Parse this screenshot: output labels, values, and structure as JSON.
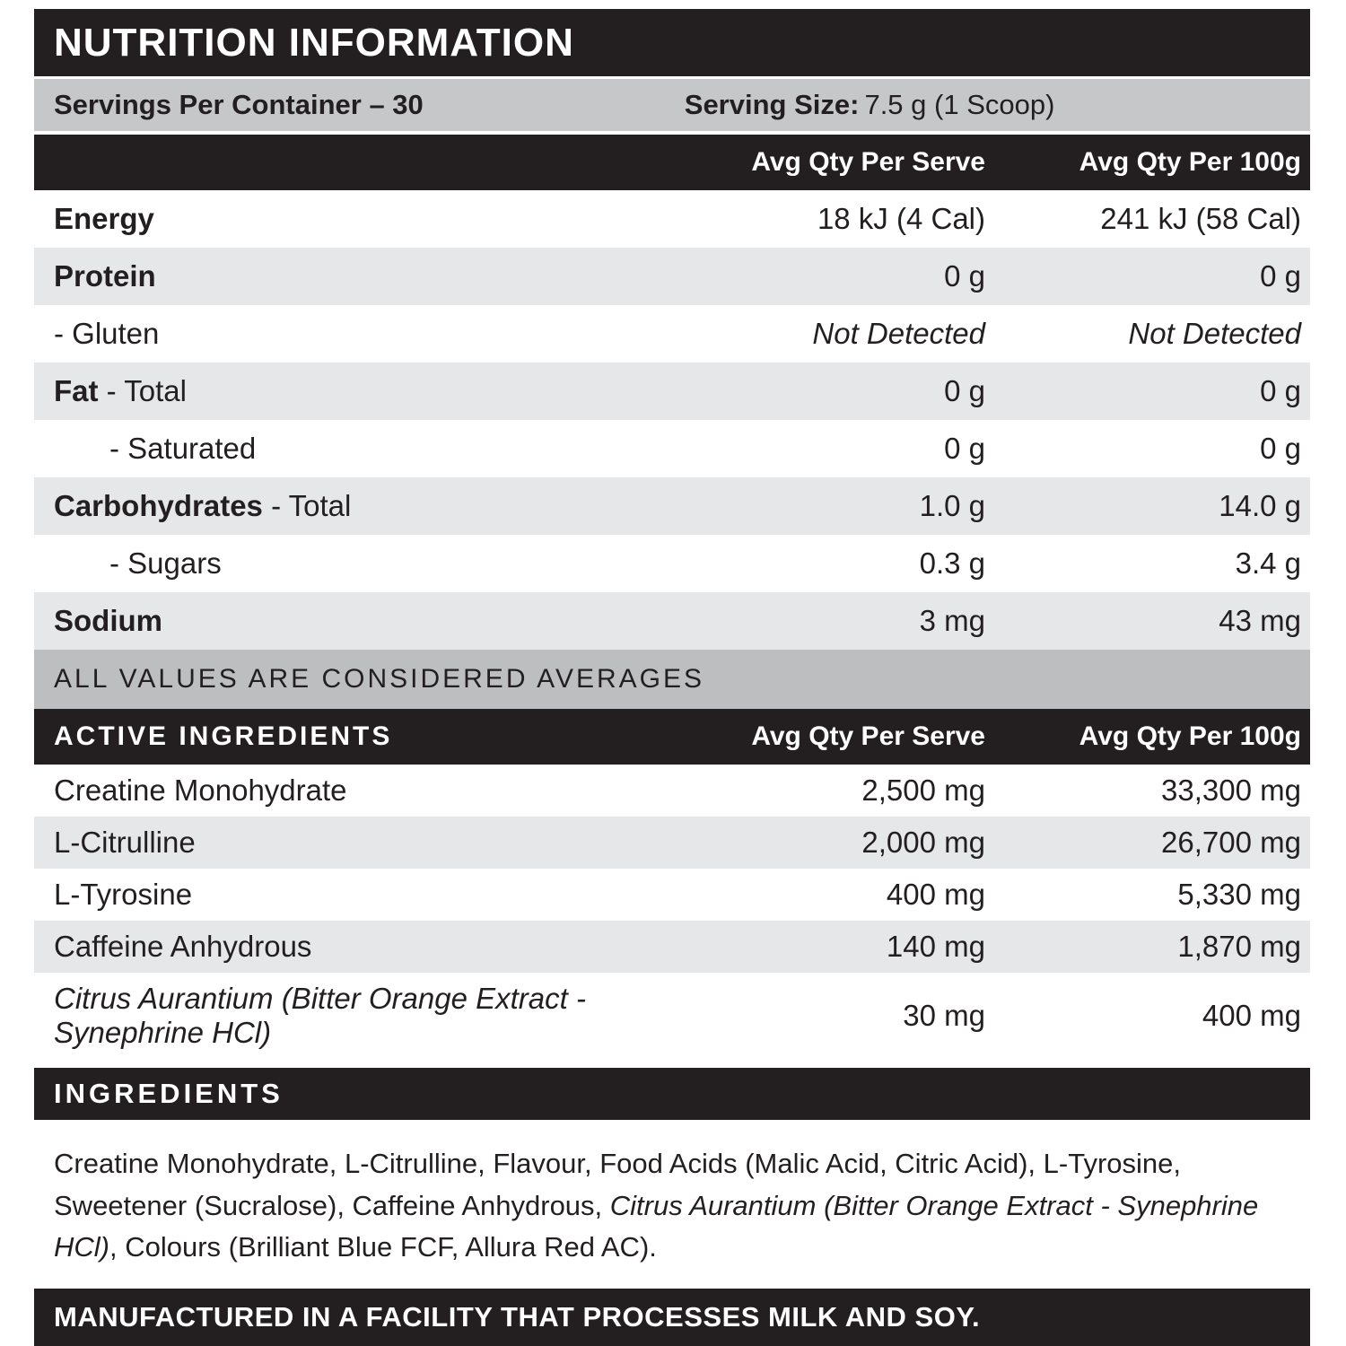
{
  "label": {
    "title": "NUTRITION INFORMATION",
    "servings_per_container": "Servings Per Container – 30",
    "serving_size_label": "Serving Size:",
    "serving_size_value": "7.5 g (1 Scoop)",
    "col_serve": "Avg Qty Per Serve",
    "col_per100": "Avg Qty Per 100g",
    "averages_note": "ALL VALUES ARE CONSIDERED AVERAGES",
    "active_header": "ACTIVE INGREDIENTS",
    "ingredients_header": "INGREDIENTS",
    "allergen_note": "MANUFACTURED IN A FACILITY THAT PROCESSES MILK AND SOY.",
    "colors": {
      "black_band": "#231f20",
      "servings_band_gray": "#c6c7c9",
      "row_shade_gray": "#e6e7e9",
      "averages_band_gray": "#bdbec0"
    }
  },
  "nutrition_rows": [
    {
      "name": "energy",
      "bold": "Energy",
      "rest": "",
      "serve": "18 kJ (4 Cal)",
      "per100": "241 kJ (58 Cal)",
      "shade": false,
      "indent": false,
      "italic_values": false
    },
    {
      "name": "protein",
      "bold": "Protein",
      "rest": "",
      "serve": "0 g",
      "per100": "0 g",
      "shade": true,
      "indent": false,
      "italic_values": false
    },
    {
      "name": "gluten",
      "bold": "",
      "rest": "- Gluten",
      "serve": "Not Detected",
      "per100": "Not Detected",
      "shade": false,
      "indent": false,
      "italic_values": true
    },
    {
      "name": "fat-total",
      "bold": "Fat",
      "rest": " - Total",
      "serve": "0 g",
      "per100": "0 g",
      "shade": true,
      "indent": false,
      "italic_values": false
    },
    {
      "name": "fat-saturated",
      "bold": "",
      "rest": "- Saturated",
      "serve": "0 g",
      "per100": "0 g",
      "shade": false,
      "indent": true,
      "italic_values": false
    },
    {
      "name": "carbohydrates-total",
      "bold": "Carbohydrates",
      "rest": " - Total",
      "serve": "1.0 g",
      "per100": "14.0 g",
      "shade": true,
      "indent": false,
      "italic_values": false
    },
    {
      "name": "carbohydrates-sugars",
      "bold": "",
      "rest": "- Sugars",
      "serve": "0.3 g",
      "per100": "3.4 g",
      "shade": false,
      "indent": true,
      "italic_values": false
    },
    {
      "name": "sodium",
      "bold": "Sodium",
      "rest": "",
      "serve": "3 mg",
      "per100": "43 mg",
      "shade": true,
      "indent": false,
      "italic_values": false
    }
  ],
  "active_rows": [
    {
      "name": "creatine-monohydrate",
      "label": "Creatine Monohydrate",
      "serve": "2,500 mg",
      "per100": "33,300 mg",
      "shade": false,
      "italic_label": false,
      "tall": false
    },
    {
      "name": "l-citrulline",
      "label": "L-Citrulline",
      "serve": "2,000 mg",
      "per100": "26,700 mg",
      "shade": true,
      "italic_label": false,
      "tall": false
    },
    {
      "name": "l-tyrosine",
      "label": "L-Tyrosine",
      "serve": "400 mg",
      "per100": "5,330 mg",
      "shade": false,
      "italic_label": false,
      "tall": false
    },
    {
      "name": "caffeine-anhydrous",
      "label": "Caffeine Anhydrous",
      "serve": "140 mg",
      "per100": "1,870 mg",
      "shade": true,
      "italic_label": false,
      "tall": false
    },
    {
      "name": "citrus-aurantium",
      "label": "Citrus Aurantium (Bitter Orange Extract - Synephrine HCl)",
      "serve": "30 mg",
      "per100": "400 mg",
      "shade": false,
      "italic_label": true,
      "tall": true
    }
  ],
  "ingredients_parts": [
    {
      "text": "Creatine Monohydrate, L-Citrulline, Flavour, Food Acids (Malic Acid, Citric Acid), L-Tyrosine, Sweetener (Sucralose), Caffeine Anhydrous, ",
      "italic": false
    },
    {
      "text": "Citrus Aurantium (Bitter Orange Extract - Synephrine HCl)",
      "italic": true
    },
    {
      "text": ", Colours (Brilliant Blue FCF, Allura Red AC).",
      "italic": false
    }
  ]
}
